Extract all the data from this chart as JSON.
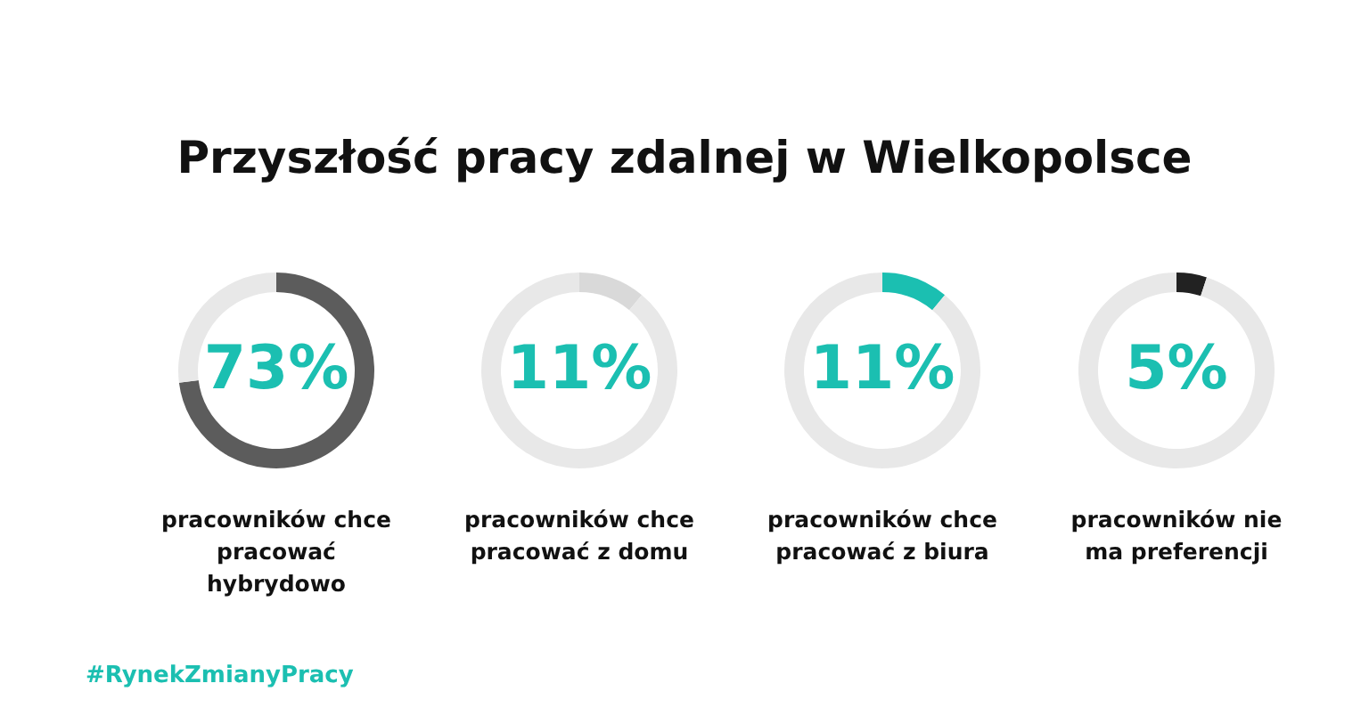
{
  "chart_data": [
    {
      "type": "donut",
      "title": "Przyszłość pracy zdalnej w Wielkopolsce",
      "xlabel": "pracowników chce pracować hybrydowo",
      "categories": [
        null,
        null
      ],
      "values": [
        73,
        27
      ],
      "colors": [
        "#5c5c5c",
        "#e8e8e8"
      ],
      "value_labels": [
        "73%",
        null
      ],
      "annotations": [
        "#RynekZmianyPracy"
      ]
    },
    {
      "type": "donut",
      "xlabel": "pracowników chce pracować z domu",
      "categories": [
        null,
        null
      ],
      "values": [
        11,
        89
      ],
      "colors": [
        "#d9d9d9",
        "#e8e8e8"
      ],
      "value_labels": [
        "11%",
        null
      ]
    },
    {
      "type": "donut",
      "xlabel": "pracowników chce pracować z biura",
      "categories": [
        null,
        null
      ],
      "values": [
        11,
        89
      ],
      "colors": [
        "#1bbfb1",
        "#e8e8e8"
      ],
      "value_labels": [
        "11%",
        null
      ]
    },
    {
      "type": "donut",
      "xlabel": "pracowników nie ma preferencji",
      "categories": [
        null,
        null
      ],
      "values": [
        5,
        95
      ],
      "colors": [
        "#222222",
        "#e8e8e8"
      ],
      "value_labels": [
        "5%",
        null
      ]
    }
  ]
}
